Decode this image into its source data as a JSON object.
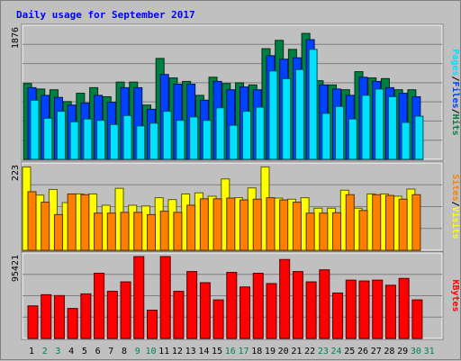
{
  "chart_data": {
    "type": "bar",
    "title": "Daily usage for September 2017",
    "days": [
      "1",
      "2",
      "3",
      "4",
      "5",
      "6",
      "7",
      "8",
      "9",
      "10",
      "11",
      "12",
      "13",
      "14",
      "15",
      "16",
      "17",
      "18",
      "19",
      "20",
      "21",
      "22",
      "23",
      "24",
      "25",
      "26",
      "27",
      "28",
      "29",
      "30",
      "31"
    ],
    "weekend_days": [
      "2",
      "3",
      "9",
      "10",
      "16",
      "17",
      "23",
      "24",
      "30",
      "31"
    ],
    "panels": [
      {
        "name": "top",
        "scale_label": "1876",
        "ymax": 1876,
        "grid": true,
        "series": [
          {
            "name": "Hits",
            "color": "#008040",
            "values": [
              1090,
              1010,
              1000,
              830,
              950,
              1030,
              900,
              1110,
              1110,
              780,
              1450,
              1170,
              1120,
              920,
              1180,
              1090,
              1100,
              1070,
              1590,
              1710,
              1580,
              1810,
              1130,
              1070,
              1000,
              1260,
              1170,
              1160,
              1000,
              1000,
              0
            ]
          },
          {
            "name": "Files",
            "color": "#0040ff",
            "values": [
              1030,
              920,
              890,
              780,
              810,
              920,
              820,
              1030,
              1030,
              720,
              1220,
              1080,
              1080,
              850,
              1120,
              1000,
              1040,
              1000,
              1490,
              1440,
              1460,
              1720,
              1070,
              1010,
              920,
              1180,
              1120,
              1030,
              950,
              900,
              0
            ]
          },
          {
            "name": "Pages",
            "color": "#00e0ff",
            "values": [
              850,
              590,
              690,
              540,
              580,
              560,
              500,
              630,
              480,
              520,
              690,
              560,
              610,
              560,
              740,
              490,
              690,
              750,
              1270,
              1160,
              1290,
              1580,
              660,
              760,
              580,
              920,
              1010,
              900,
              530,
              620,
              0
            ]
          }
        ]
      },
      {
        "name": "middle",
        "scale_label": "223",
        "ymax": 223,
        "grid": true,
        "series": [
          {
            "name": "Visits",
            "color": "#ffff00",
            "values": [
              222,
              147,
              162,
              127,
              150,
              150,
              120,
              165,
              120,
              118,
              140,
              135,
              150,
              153,
              144,
              190,
              140,
              166,
              222,
              139,
              136,
              140,
              112,
              112,
              160,
              112,
              150,
              150,
              144,
              163,
              0
            ]
          },
          {
            "name": "Sites",
            "color": "#ff8000",
            "values": [
              156,
              128,
              95,
              150,
              148,
              99,
              99,
              101,
              101,
              95,
              104,
              101,
              120,
              137,
              137,
              139,
              134,
              136,
              140,
              134,
              128,
              99,
              99,
              100,
              148,
              106,
              148,
              146,
              136,
              148,
              0
            ]
          }
        ]
      },
      {
        "name": "bottom",
        "scale_label": "95421",
        "ymax": 95421,
        "grid": true,
        "series": [
          {
            "name": "KBytes",
            "color": "#ff0000",
            "values": [
              38000,
              51000,
              50000,
              35000,
              52000,
              76000,
              55000,
              66000,
              95421,
              33000,
              95421,
              55000,
              78000,
              65000,
              45000,
              77000,
              60000,
              76000,
              64000,
              92000,
              78000,
              66000,
              80000,
              53000,
              68000,
              67000,
              68000,
              62000,
              70000,
              45000,
              0
            ]
          }
        ]
      }
    ],
    "side_labels": [
      {
        "panel": "top",
        "parts": [
          {
            "text": "Pages",
            "color": "#00e0ff"
          },
          {
            "text": "/",
            "color": "#000000"
          },
          {
            "text": "Files",
            "color": "#0040ff"
          },
          {
            "text": "/",
            "color": "#000000"
          },
          {
            "text": "Hits",
            "color": "#008040"
          }
        ]
      },
      {
        "panel": "middle",
        "parts": [
          {
            "text": "Sites",
            "color": "#ff8000"
          },
          {
            "text": "/",
            "color": "#000000"
          },
          {
            "text": "Visits",
            "color": "#ffff00"
          }
        ]
      },
      {
        "panel": "bottom",
        "parts": [
          {
            "text": "KBytes",
            "color": "#ff0000"
          }
        ]
      }
    ],
    "colors": {
      "background": "#c0c0c0",
      "plot_background": "#ffffff",
      "grid": "#808080",
      "title": "#0000ff",
      "weekday_label": "#000000",
      "weekend_label": "#00805c"
    }
  }
}
